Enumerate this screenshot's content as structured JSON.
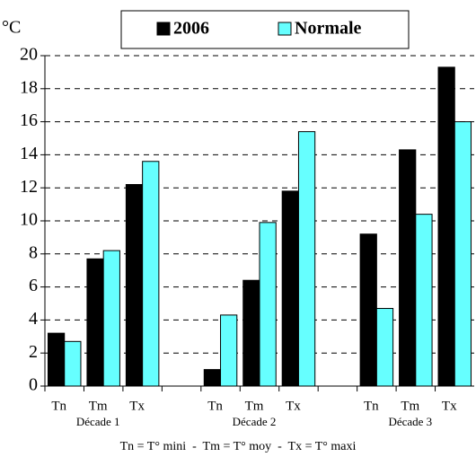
{
  "chart_data": {
    "type": "bar",
    "y_label": "°C",
    "categories": [
      "Tn",
      "Tm",
      "Tx",
      null,
      "Tn",
      "Tm",
      "Tx",
      null,
      "Tn",
      "Tm",
      "Tx"
    ],
    "group_labels": [
      "Décade 1",
      "Décade 2",
      "Décade 3"
    ],
    "series": [
      {
        "name": "2006",
        "color": "#000000",
        "values": [
          3.2,
          7.7,
          12.2,
          null,
          1.0,
          6.4,
          11.8,
          null,
          9.2,
          14.3,
          19.3
        ]
      },
      {
        "name": "Normale",
        "color": "#66ffff",
        "values": [
          2.7,
          8.2,
          13.6,
          null,
          4.3,
          9.9,
          15.4,
          null,
          4.7,
          10.4,
          16.0
        ]
      }
    ],
    "ylim": [
      0,
      20
    ],
    "yticks": [
      0,
      2,
      4,
      6,
      8,
      10,
      12,
      14,
      16,
      18,
      20
    ],
    "grid": true,
    "footnote": "Tn = T° mini  -  Tm = T° moy  -  Tx = T° maxi"
  }
}
